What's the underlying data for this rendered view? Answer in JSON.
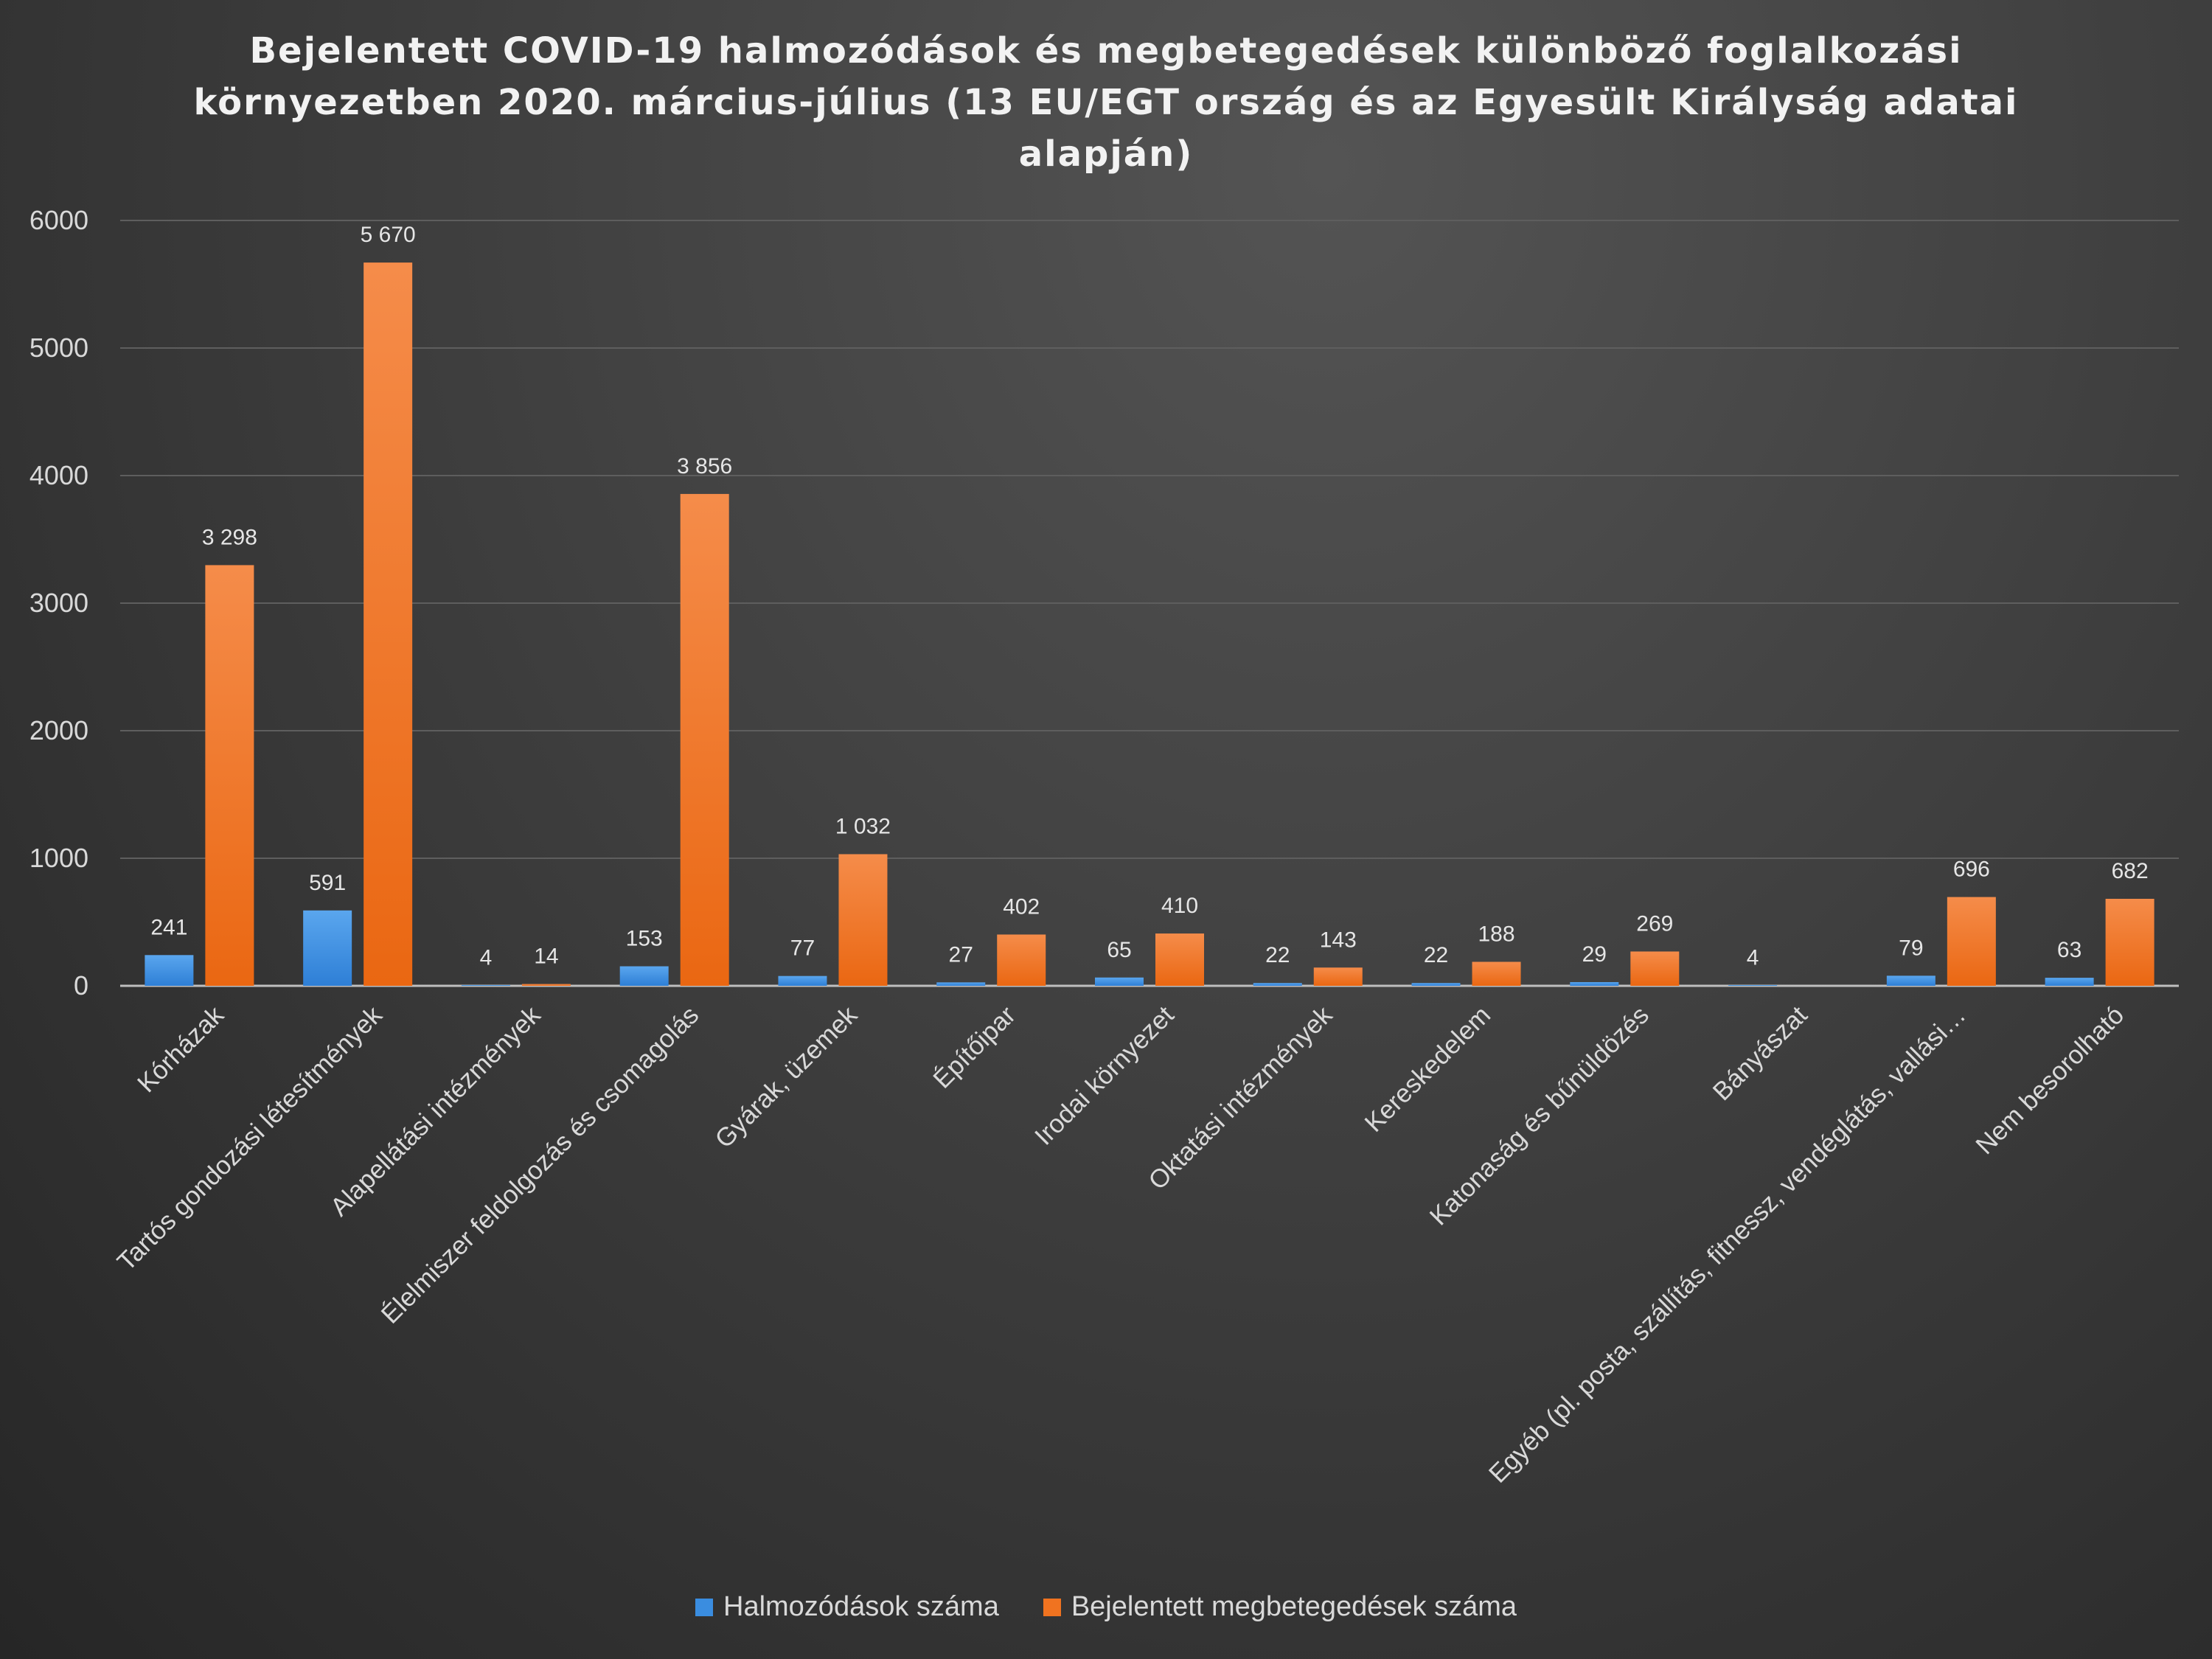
{
  "chart_data": {
    "type": "bar",
    "title": "Bejelentett COVID-19 halmozódások és megbetegedések különböző foglalkozási környezetben 2020. március-július (13 EU/EGT ország és az Egyesült Királyság adatai alapján)",
    "xlabel": "",
    "ylabel": "",
    "ylim": [
      0,
      6000
    ],
    "yticks": [
      0,
      1000,
      2000,
      3000,
      4000,
      5000,
      6000
    ],
    "grid": true,
    "legend_position": "bottom",
    "categories": [
      "Kórházak",
      "Tartós gondozási létesítmények",
      "Alapellátási intézmények",
      "Élelmiszer feldolgozás és csomagolás",
      "Gyárak, üzemek",
      "Építőipar",
      "Irodai környezet",
      "Oktatási intézmények",
      "Kereskedelem",
      "Katonaság és bűnüldözés",
      "Bányászat",
      "Egyéb (pl. posta, szállítás, fitnessz, vendéglátás, vallási…",
      "Nem besorolható"
    ],
    "series": [
      {
        "name": "Halmozódások száma",
        "color": "#3a8de0",
        "values": [
          241,
          591,
          4,
          153,
          77,
          27,
          65,
          22,
          22,
          29,
          4,
          79,
          63
        ],
        "labels": [
          "241",
          "591",
          "4",
          "153",
          "77",
          "27",
          "65",
          "22",
          "22",
          "29",
          "4",
          "79",
          "63"
        ]
      },
      {
        "name": "Bejelentett megbetegedések száma",
        "color": "#f07320",
        "values": [
          3298,
          5670,
          14,
          3856,
          1032,
          402,
          410,
          143,
          188,
          269,
          null,
          696,
          682
        ],
        "labels": [
          "3 298",
          "5 670",
          "14",
          "3 856",
          "1 032",
          "402",
          "410",
          "143",
          "188",
          "269",
          "",
          "696",
          "682"
        ]
      }
    ]
  }
}
